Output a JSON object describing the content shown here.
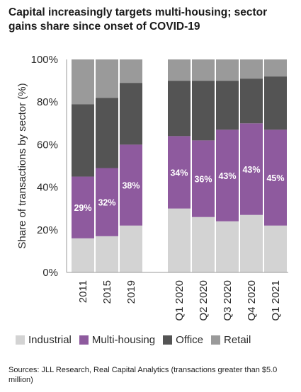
{
  "title": {
    "line1": "Capital increasingly targets multi-housing; sector",
    "line2": "gains share since onset of COVID-19"
  },
  "source": "Sources: JLL Research, Real Capital Analytics (transactions greater than $5.0 million)",
  "colors": {
    "Industrial": "#d3d3d3",
    "Multi-housing": "#8e5a9e",
    "Office": "#545454",
    "Retail": "#9a9a9a"
  },
  "chart_data": {
    "type": "bar",
    "stacked": true,
    "categories": [
      "2011",
      "2015",
      "2019",
      "Q1 2020",
      "Q2 2020",
      "Q3 2020",
      "Q4 2020",
      "Q1 2021"
    ],
    "ylabel": "Share of transactions by sector (%)",
    "xlabel": "",
    "ylim": [
      0,
      100
    ],
    "yticks": [
      "0%",
      "20%",
      "40%",
      "60%",
      "80%",
      "100%"
    ],
    "grid": false,
    "legend_position": "bottom",
    "series": [
      {
        "name": "Industrial",
        "values": [
          16,
          17,
          22,
          30,
          26,
          24,
          27,
          22
        ]
      },
      {
        "name": "Multi-housing",
        "values": [
          29,
          32,
          38,
          34,
          36,
          43,
          43,
          45
        ]
      },
      {
        "name": "Office",
        "values": [
          34,
          33,
          29,
          26,
          28,
          23,
          21,
          25
        ]
      },
      {
        "name": "Retail",
        "values": [
          21,
          18,
          11,
          10,
          10,
          10,
          9,
          8
        ]
      }
    ],
    "data_labels": [
      "29%",
      "32%",
      "38%",
      "34%",
      "36%",
      "43%",
      "43%",
      "45%"
    ],
    "data_label_series": "Multi-housing"
  }
}
